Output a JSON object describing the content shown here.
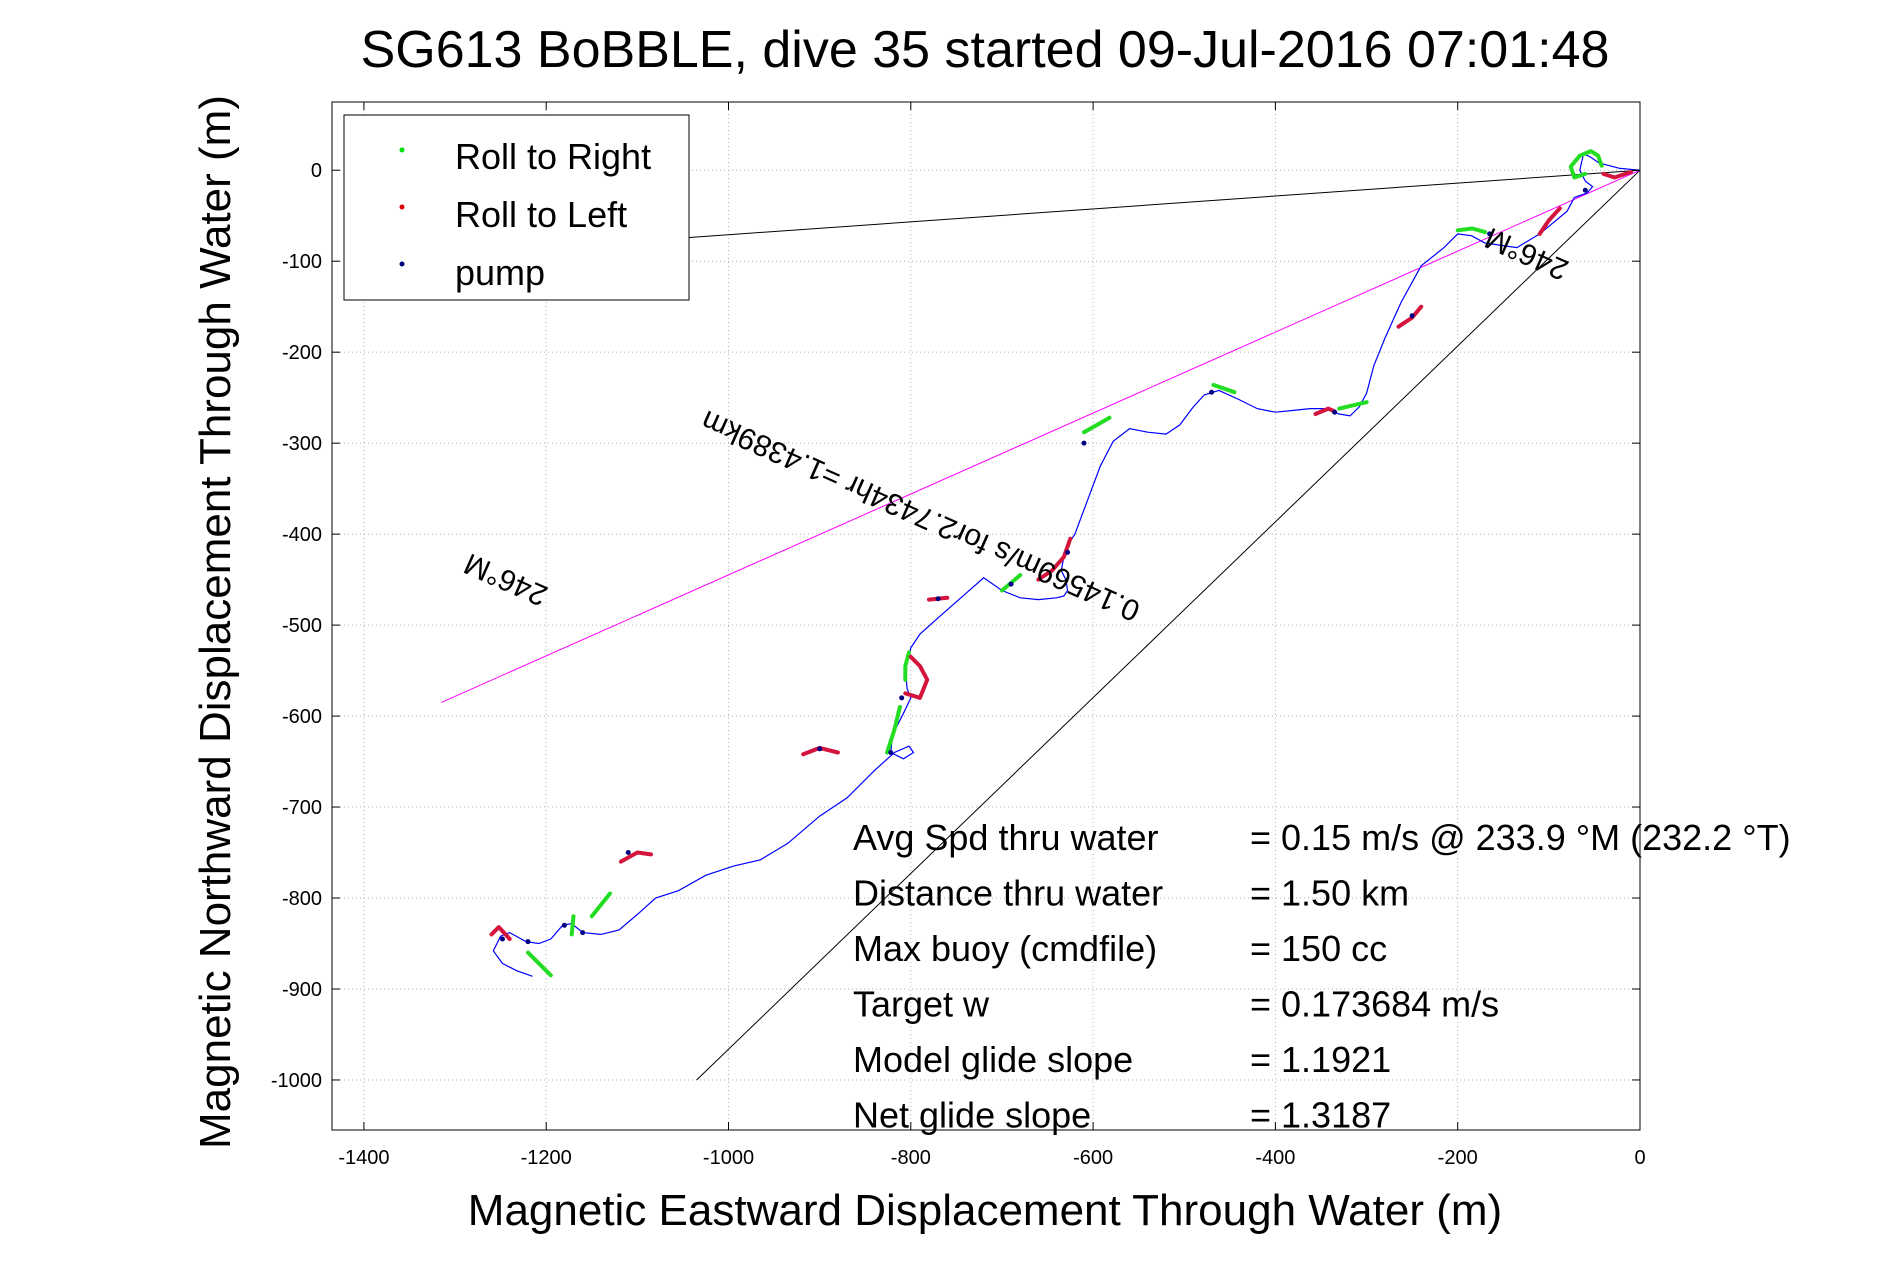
{
  "chart_data": {
    "type": "line",
    "title": "SG613 BoBBLE, dive 35 started 09-Jul-2016 07:01:48",
    "xlabel": "Magnetic Eastward Displacement Through Water (m)",
    "ylabel": "Magnetic Northward Displacement Through Water (m)",
    "xlim": [
      -1435,
      0
    ],
    "ylim": [
      -1055,
      75
    ],
    "xticks": [
      -1400,
      -1200,
      -1000,
      -800,
      -600,
      -400,
      -200,
      0
    ],
    "yticks": [
      0,
      -100,
      -200,
      -300,
      -400,
      -500,
      -600,
      -700,
      -800,
      -900,
      -1000
    ],
    "xtick_labels": [
      "-1400",
      "-1200",
      "-1000",
      "-800",
      "-600",
      "-400",
      "-200",
      "0"
    ],
    "ytick_labels": [
      "0",
      "-100",
      "-200",
      "-300",
      "-400",
      "-500",
      "-600",
      "-700",
      "-800",
      "-900",
      "-1000"
    ],
    "grid": true,
    "legend": {
      "placement": "top-left",
      "entries": [
        {
          "label": "Roll to Right",
          "color": "#00dd00"
        },
        {
          "label": "Roll to Left",
          "color": "#dd0000"
        },
        {
          "label": "pump",
          "color": "#000080"
        }
      ]
    },
    "track": {
      "name": "glider track",
      "color": "#0000ff",
      "x": [
        0,
        -22,
        -45,
        -55,
        -62,
        -66,
        -60,
        -52,
        -58,
        -72,
        -80,
        -110,
        -135,
        -170,
        -185,
        -200,
        -215,
        -240,
        -262,
        -280,
        -292,
        -300,
        -308,
        -318,
        -330,
        -345,
        -362,
        -380,
        -400,
        -420,
        -440,
        -462,
        -478,
        -490,
        -505,
        -520,
        -540,
        -560,
        -578,
        -592,
        -605,
        -620,
        -628,
        -632,
        -635,
        -630,
        -628,
        -632,
        -640,
        -660,
        -680,
        -700,
        -720,
        -745,
        -770,
        -790,
        -800,
        -806,
        -804,
        -800,
        -808,
        -820,
        -822,
        -808,
        -797,
        -802,
        -818,
        -840,
        -870,
        -900,
        -935,
        -965,
        -995,
        -1025,
        -1055,
        -1080,
        -1100,
        -1120,
        -1140,
        -1160,
        -1172,
        -1182,
        -1195,
        -1208,
        -1222,
        -1240,
        -1250,
        -1258,
        -1248,
        -1232,
        -1215
      ],
      "y": [
        0,
        2,
        8,
        15,
        18,
        0,
        -12,
        -18,
        -25,
        -30,
        -45,
        -70,
        -85,
        -80,
        -72,
        -70,
        -85,
        -105,
        -145,
        -185,
        -215,
        -245,
        -260,
        -270,
        -268,
        -262,
        -262,
        -264,
        -266,
        -262,
        -252,
        -242,
        -247,
        -260,
        -280,
        -290,
        -288,
        -284,
        -298,
        -325,
        -360,
        -400,
        -412,
        -425,
        -440,
        -450,
        -462,
        -468,
        -470,
        -472,
        -470,
        -462,
        -448,
        -470,
        -492,
        -510,
        -525,
        -550,
        -570,
        -580,
        -597,
        -620,
        -640,
        -647,
        -640,
        -633,
        -640,
        -660,
        -690,
        -710,
        -740,
        -758,
        -765,
        -775,
        -792,
        -800,
        -818,
        -835,
        -840,
        -838,
        -828,
        -830,
        -845,
        -850,
        -848,
        -838,
        -842,
        -858,
        -872,
        -880,
        -886
      ]
    },
    "roll_right_segments": [
      {
        "x": [
          -42,
          -46,
          -54,
          -66,
          -76,
          -72,
          -60
        ],
        "y": [
          5,
          16,
          21,
          16,
          4,
          -8,
          -4
        ]
      },
      {
        "x": [
          -170,
          -184,
          -200
        ],
        "y": [
          -68,
          -64,
          -66
        ]
      },
      {
        "x": [
          -300,
          -330
        ],
        "y": [
          -255,
          -262
        ]
      },
      {
        "x": [
          -445,
          -468
        ],
        "y": [
          -244,
          -236
        ]
      },
      {
        "x": [
          -582,
          -610
        ],
        "y": [
          -272,
          -288
        ]
      },
      {
        "x": [
          -680,
          -700
        ],
        "y": [
          -445,
          -462
        ]
      },
      {
        "x": [
          -802,
          -806,
          -806
        ],
        "y": [
          -530,
          -545,
          -560
        ]
      },
      {
        "x": [
          -812,
          -818,
          -826
        ],
        "y": [
          -590,
          -615,
          -640
        ]
      },
      {
        "x": [
          -1130,
          -1150
        ],
        "y": [
          -795,
          -820
        ]
      },
      {
        "x": [
          -1170,
          -1172
        ],
        "y": [
          -820,
          -840
        ]
      },
      {
        "x": [
          -1220,
          -1195
        ],
        "y": [
          -860,
          -885
        ]
      }
    ],
    "roll_left_segments": [
      {
        "x": [
          -10,
          -28,
          -40
        ],
        "y": [
          -2,
          -8,
          -4
        ]
      },
      {
        "x": [
          -88,
          -100,
          -110
        ],
        "y": [
          -42,
          -55,
          -70
        ]
      },
      {
        "x": [
          -240,
          -250,
          -265
        ],
        "y": [
          -150,
          -162,
          -172
        ]
      },
      {
        "x": [
          -335,
          -342,
          -356
        ],
        "y": [
          -265,
          -262,
          -268
        ]
      },
      {
        "x": [
          -625,
          -632,
          -645,
          -660
        ],
        "y": [
          -405,
          -425,
          -440,
          -450
        ]
      },
      {
        "x": [
          -760,
          -780
        ],
        "y": [
          -470,
          -472
        ]
      },
      {
        "x": [
          -800,
          -790,
          -782,
          -790,
          -806
        ],
        "y": [
          -535,
          -545,
          -560,
          -580,
          -575
        ]
      },
      {
        "x": [
          -880,
          -900,
          -918
        ],
        "y": [
          -640,
          -635,
          -642
        ]
      },
      {
        "x": [
          -1085,
          -1100,
          -1118
        ],
        "y": [
          -752,
          -750,
          -760
        ]
      },
      {
        "x": [
          -1240,
          -1252,
          -1260
        ],
        "y": [
          -845,
          -832,
          -840
        ]
      }
    ],
    "pump_points": {
      "x": [
        -60,
        -165,
        -250,
        -335,
        -470,
        -610,
        -628,
        -690,
        -770,
        -810,
        -822,
        -900,
        -1110,
        -1160,
        -1180,
        -1220,
        -1248
      ],
      "y": [
        -22,
        -70,
        -160,
        -266,
        -244,
        -300,
        -420,
        -455,
        -471,
        -580,
        -640,
        -636,
        -750,
        -838,
        -830,
        -848,
        -845
      ]
    },
    "reference_lines": [
      {
        "x": [
          0,
          -1058
        ],
        "y": [
          0,
          -75
        ],
        "color": "#000000"
      },
      {
        "x": [
          0,
          -1035
        ],
        "y": [
          0,
          -1000
        ],
        "color": "#000000"
      },
      {
        "x": [
          0,
          -1315
        ],
        "y": [
          0,
          -585
        ],
        "color": "#ff00ff"
      }
    ],
    "annotations": [
      {
        "text": "246°M",
        "x": -1240,
        "y": -440,
        "angle_deg": 204
      },
      {
        "text": "0.14569m/s for2.7434hr =1.4389km",
        "x": -785,
        "y": -370,
        "angle_deg": 204
      },
      {
        "text": "246°M",
        "x": -120,
        "y": -82,
        "angle_deg": 204
      }
    ],
    "stats": [
      {
        "label": "Avg Spd thru water",
        "value": "=  0.15 m/s @ 233.9 °M (232.2 °T)"
      },
      {
        "label": "Distance thru water",
        "value": "=  1.50 km"
      },
      {
        "label": "Max buoy (cmdfile)",
        "value": "= 150 cc"
      },
      {
        "label": "Target w",
        "value": "= 0.173684 m/s"
      },
      {
        "label": "Model glide slope",
        "value": "= 1.1921"
      },
      {
        "label": "Net glide slope",
        "value": "= 1.3187"
      }
    ]
  }
}
